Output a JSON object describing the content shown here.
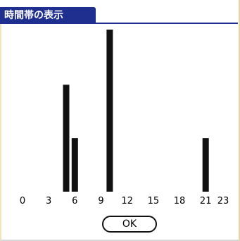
{
  "dialog": {
    "title": "時間帯の表示",
    "ok_label": "OK"
  },
  "chart_data": {
    "type": "bar",
    "title": "",
    "xlabel": "",
    "ylabel": "",
    "x_ticks": [
      "0",
      "3",
      "6",
      "9",
      "12",
      "15",
      "18",
      "21",
      "23"
    ],
    "x_range": [
      0,
      23
    ],
    "bars": [
      {
        "hour": 5,
        "value": 0.66
      },
      {
        "hour": 6,
        "value": 0.33
      },
      {
        "hour": 10,
        "value": 1.0
      },
      {
        "hour": 21,
        "value": 0.33
      }
    ],
    "ylim": [
      0,
      1
    ],
    "grid": false,
    "colors": {
      "bar": "#111111",
      "title_bg": "#1e2f8f"
    }
  }
}
